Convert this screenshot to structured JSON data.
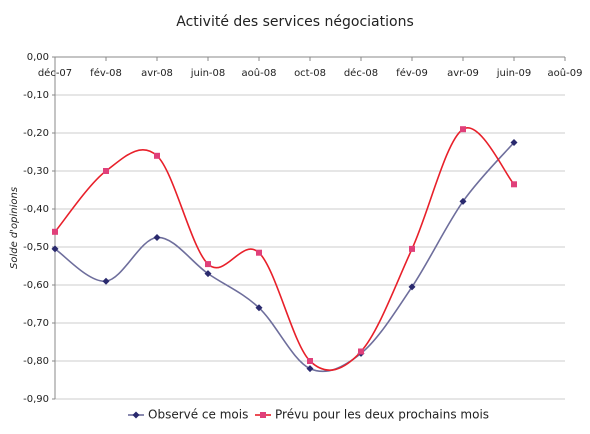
{
  "chart_data": {
    "type": "line",
    "title": "Activité des services négociations",
    "y_label": "Solde d'opinions",
    "categories": [
      "déc-07",
      "fév-08",
      "avr-08",
      "juin-08",
      "aoû-08",
      "oct-08",
      "déc-08",
      "fév-09",
      "avr-09",
      "juin-09",
      "aoû-09"
    ],
    "series": [
      {
        "name": "Observé ce mois",
        "color": "#6e6e9c",
        "marker_color": "#2a2a6e",
        "marker": "diamond",
        "values": [
          -0.505,
          -0.59,
          -0.475,
          -0.57,
          -0.66,
          -0.82,
          -0.78,
          -0.605,
          -0.38,
          -0.225,
          null
        ]
      },
      {
        "name": "Prévu pour les deux prochains mois",
        "color": "#e8202a",
        "marker_color": "#e0407a",
        "marker": "square",
        "values": [
          -0.46,
          -0.3,
          -0.26,
          -0.545,
          -0.515,
          -0.8,
          -0.775,
          -0.505,
          -0.19,
          -0.335,
          null
        ]
      }
    ],
    "ylim": [
      -0.9,
      0
    ],
    "yticks": [
      {
        "value": 0,
        "label": "0,00"
      },
      {
        "value": -0.1,
        "label": "-0,10"
      },
      {
        "value": -0.2,
        "label": "-0,20"
      },
      {
        "value": -0.3,
        "label": "-0,30"
      },
      {
        "value": -0.4,
        "label": "-0,40"
      },
      {
        "value": -0.5,
        "label": "-0,50"
      },
      {
        "value": -0.6,
        "label": "-0,60"
      },
      {
        "value": -0.7,
        "label": "-0,70"
      },
      {
        "value": -0.8,
        "label": "-0,80"
      },
      {
        "value": -0.9,
        "label": "-0,90"
      }
    ],
    "grid": true,
    "legend": "bottom"
  }
}
